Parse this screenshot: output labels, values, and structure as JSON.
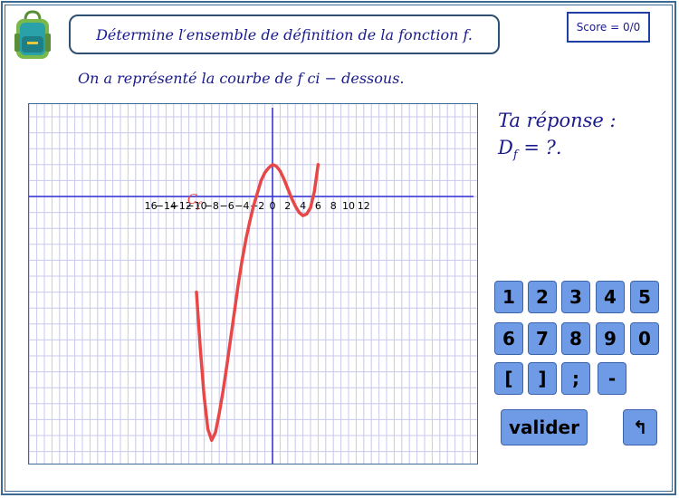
{
  "question": "Détermine l′ensemble de définition de la fonction f.",
  "score": "Score = 0/0",
  "subtitle": "On a représenté la courbe de f ci − dessous.",
  "answer": {
    "line1": "Ta réponse :",
    "d_letter": "D",
    "d_sub": "f",
    "d_rest": " = ?."
  },
  "keypad": {
    "row1": [
      "1",
      "2",
      "3",
      "4",
      "5"
    ],
    "row2": [
      "6",
      "7",
      "8",
      "9",
      "0"
    ],
    "row3": [
      "[",
      "]",
      ";",
      "-"
    ],
    "submit": "valider",
    "back": "↰"
  },
  "colors": {
    "curve": "#e84747",
    "axis": "#2a2ad4",
    "grid": "#c8c8ec",
    "button": "#6f9be6",
    "text": "#1a1a8c"
  },
  "graph": {
    "x_ticks": [
      "16",
      "−14",
      "−12",
      "−10",
      "−8",
      "−6",
      "−4",
      "−2",
      "0",
      "2",
      "4",
      "6",
      "8",
      "10",
      "12"
    ],
    "curve_label": "C",
    "curve_label_sub": "f",
    "domain": [
      -10,
      6
    ],
    "points": [
      [
        -10,
        -6
      ],
      [
        -9.5,
        -9.5
      ],
      [
        -9,
        -12.5
      ],
      [
        -8.5,
        -14.6
      ],
      [
        -8,
        -15.3
      ],
      [
        -7.5,
        -14.8
      ],
      [
        -7,
        -13.6
      ],
      [
        -6.5,
        -12.2
      ],
      [
        -6,
        -10.6
      ],
      [
        -5.5,
        -8.9
      ],
      [
        -5,
        -7.2
      ],
      [
        -4.5,
        -5.5
      ],
      [
        -4,
        -4
      ],
      [
        -3.5,
        -2.7
      ],
      [
        -3,
        -1.6
      ],
      [
        -2.5,
        -0.6
      ],
      [
        -2,
        0.2
      ],
      [
        -1.5,
        1.0
      ],
      [
        -1,
        1.5
      ],
      [
        -0.5,
        1.8
      ],
      [
        0,
        2
      ],
      [
        0.5,
        1.9
      ],
      [
        1,
        1.6
      ],
      [
        1.5,
        1.1
      ],
      [
        2,
        0.5
      ],
      [
        2.5,
        -0.1
      ],
      [
        3,
        -0.6
      ],
      [
        3.5,
        -1.0
      ],
      [
        4,
        -1.2
      ],
      [
        4.5,
        -1.1
      ],
      [
        5,
        -0.7
      ],
      [
        5.5,
        0.3
      ],
      [
        6,
        2
      ]
    ]
  }
}
